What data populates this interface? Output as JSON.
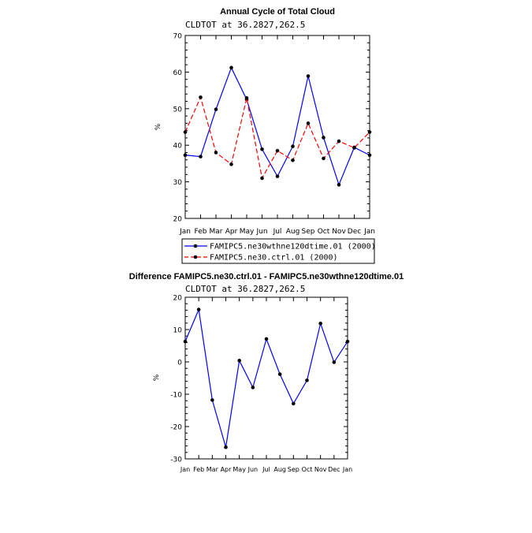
{
  "chart_data": [
    {
      "type": "line",
      "title": "Annual Cycle of Total Cloud",
      "subtitle": "CLDTOT at 36.2827,262.5",
      "ylabel": "%",
      "xlabel": "",
      "ylim": [
        20,
        70
      ],
      "yticks": [
        20,
        30,
        40,
        50,
        60,
        70
      ],
      "categories": [
        "Jan",
        "Feb",
        "Mar",
        "Apr",
        "May",
        "Jun",
        "Jul",
        "Aug",
        "Sep",
        "Oct",
        "Nov",
        "Dec",
        "Jan"
      ],
      "series": [
        {
          "name": "FAMIPC5.ne30wthne120dtime.01 (2000)",
          "color": "#0000ff",
          "style": "solid",
          "values": [
            37.3,
            36.9,
            49.8,
            61.2,
            52.5,
            38.9,
            31.5,
            39.7,
            58.9,
            42.1,
            29.2,
            39.4,
            37.3
          ]
        },
        {
          "name": "FAMIPC5.ne30.ctrl.01 (2000)",
          "color": "#ff0000",
          "style": "dashed",
          "values": [
            43.6,
            53.1,
            38.0,
            34.8,
            52.9,
            31.0,
            38.5,
            35.9,
            46.0,
            36.4,
            41.1,
            39.3,
            43.6
          ]
        }
      ],
      "legend": "bottom"
    },
    {
      "type": "line",
      "title": "Difference FAMIPC5.ne30.ctrl.01 - FAMIPC5.ne30wthne120dtime.01",
      "subtitle": "CLDTOT at 36.2827,262.5",
      "ylabel": "%",
      "xlabel": "",
      "ylim": [
        -30,
        20
      ],
      "yticks": [
        -30,
        -20,
        -10,
        0,
        10,
        20
      ],
      "categories": [
        "Jan",
        "Feb",
        "Mar",
        "Apr",
        "May",
        "Jun",
        "Jul",
        "Aug",
        "Sep",
        "Oct",
        "Nov",
        "Dec",
        "Jan"
      ],
      "series": [
        {
          "name": "Difference",
          "color": "#0000ff",
          "style": "solid",
          "values": [
            6.3,
            16.2,
            -11.8,
            -26.4,
            0.4,
            -7.9,
            7.1,
            -3.8,
            -12.9,
            -5.7,
            11.9,
            -0.1,
            6.3
          ]
        }
      ]
    }
  ]
}
